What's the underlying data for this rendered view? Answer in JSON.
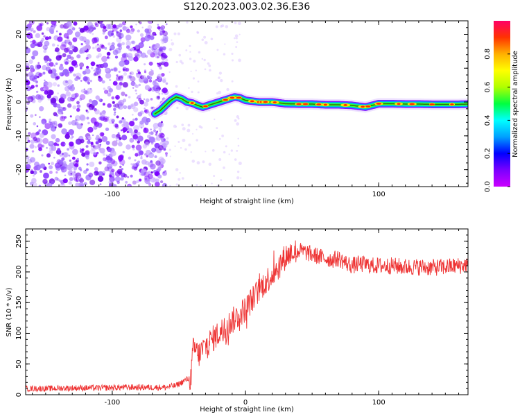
{
  "page": {
    "title": "S120.2023.003.02.36.E36"
  },
  "colors": {
    "line": "#ee3333",
    "axis": "#000000",
    "scatter_purple": "#7a00ff",
    "colorbar": [
      "#cc00ff",
      "#7a00ff",
      "#0000ff",
      "#00a0ff",
      "#00ffff",
      "#00ff40",
      "#b0ff00",
      "#ffff00",
      "#ffb000",
      "#ff3300",
      "#ff0066"
    ]
  },
  "chart_data": [
    {
      "type": "heatmap",
      "name": "spectrogram",
      "xlabel": "Height of straight line (km)",
      "ylabel": "Frequency (Hz)",
      "xlim": [
        -165,
        167
      ],
      "ylim": [
        -25,
        24
      ],
      "x_ticks": [
        -100,
        100
      ],
      "x_tick_labels": [
        "-100",
        "100"
      ],
      "y_ticks": [
        -20,
        -10,
        0,
        10,
        20
      ],
      "y_tick_labels": [
        "-20",
        "-10",
        "0",
        "10",
        "20"
      ],
      "noise_region_x": [
        -165,
        -63
      ],
      "ridge": {
        "x": [
          -68,
          -64,
          -60,
          -56,
          -52,
          -48,
          -44,
          -40,
          -36,
          -32,
          -28,
          -24,
          -20,
          -16,
          -12,
          -8,
          -4,
          0,
          10,
          20,
          30,
          40,
          50,
          60,
          70,
          80,
          90,
          100,
          110,
          120,
          130,
          140,
          150,
          160,
          167
        ],
        "y": [
          -3.5,
          -2.5,
          -1.0,
          0.5,
          1.5,
          1.0,
          0.0,
          -0.3,
          -1.0,
          -1.5,
          -1.0,
          -0.5,
          0.0,
          0.5,
          1.0,
          1.5,
          1.2,
          0.5,
          0.0,
          0.0,
          -0.5,
          -0.6,
          -0.6,
          -0.8,
          -0.8,
          -1.0,
          -1.5,
          -0.5,
          -0.5,
          -0.6,
          -0.6,
          -0.7,
          -0.7,
          -0.7,
          -0.6
        ]
      },
      "colorbar": {
        "label": "Normalized spectral amplitude",
        "range": [
          0,
          1
        ],
        "ticks": [
          0.0,
          0.2,
          0.4,
          0.6,
          0.8
        ],
        "tick_labels": [
          "0.0",
          "0.2",
          "0.4",
          "0.6",
          "0.8"
        ]
      }
    },
    {
      "type": "line",
      "name": "snr",
      "xlabel": "Height of straight line (km)",
      "ylabel": "SNR (10 * v/v)",
      "xlim": [
        -165,
        167
      ],
      "ylim": [
        0,
        270
      ],
      "x_ticks": [
        -100,
        0,
        100
      ],
      "x_tick_labels": [
        "-100",
        "0",
        "100"
      ],
      "y_ticks": [
        0,
        50,
        100,
        150,
        200,
        250
      ],
      "y_tick_labels": [
        "0",
        "50",
        "100",
        "150",
        "200",
        "250"
      ],
      "series": [
        {
          "x": [
            -165,
            -150,
            -130,
            -110,
            -90,
            -70,
            -60,
            -52,
            -48,
            -44,
            -41,
            -39,
            -37,
            -35,
            -30,
            -25,
            -20,
            -15,
            -10,
            -5,
            0,
            5,
            10,
            15,
            20,
            25,
            30,
            35,
            40,
            45,
            50,
            55,
            60,
            65,
            70,
            75,
            80,
            85,
            90,
            95,
            100,
            110,
            120,
            130,
            140,
            150,
            160,
            167
          ],
          "y": [
            10,
            10,
            11,
            11,
            12,
            12,
            12,
            15,
            20,
            25,
            28,
            80,
            70,
            65,
            80,
            90,
            100,
            110,
            120,
            130,
            140,
            155,
            170,
            185,
            195,
            210,
            225,
            232,
            235,
            232,
            228,
            225,
            222,
            220,
            222,
            215,
            210,
            213,
            212,
            210,
            210,
            210,
            208,
            208,
            207,
            208,
            210,
            212
          ]
        }
      ]
    }
  ]
}
